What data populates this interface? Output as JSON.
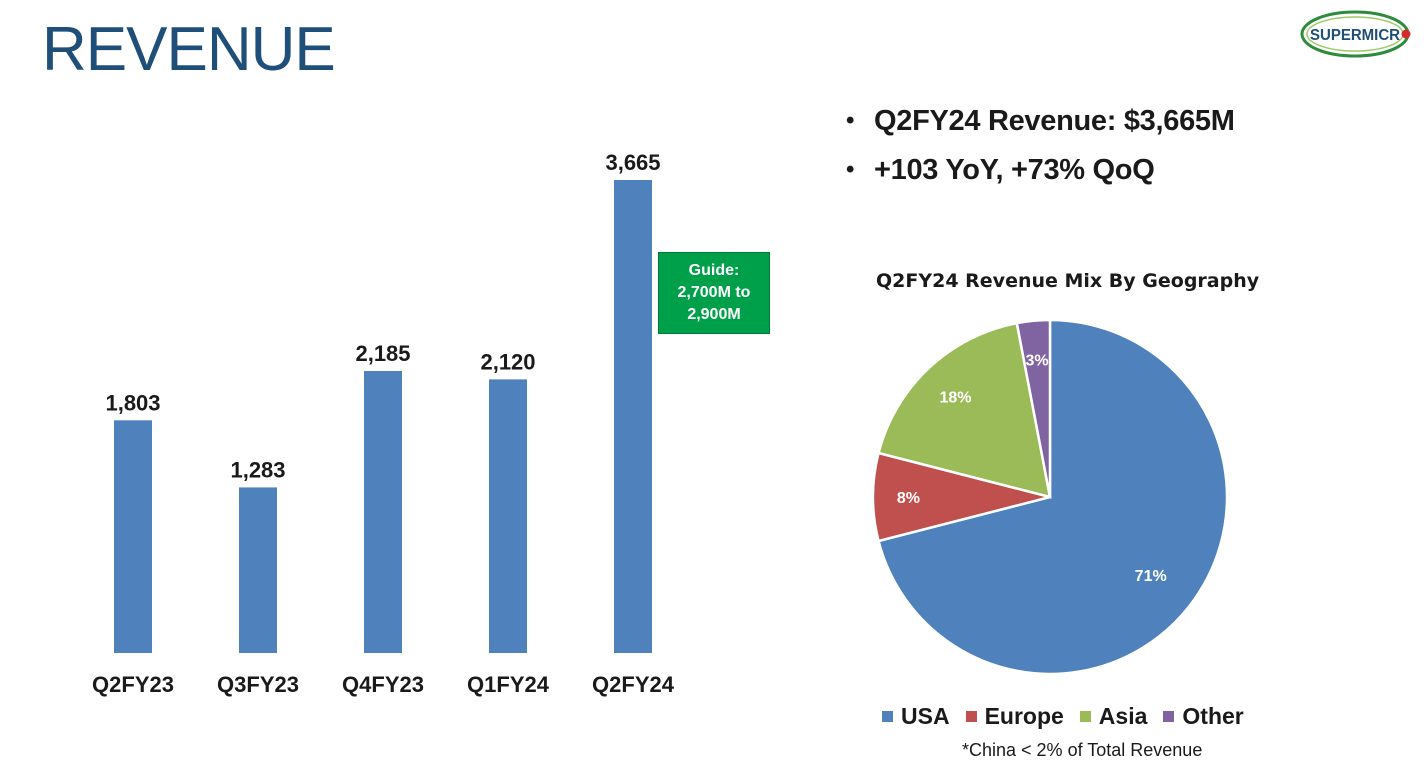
{
  "page": {
    "title": "REVENUE",
    "logo_text": "SUPERMICR",
    "bullets": [
      "Q2FY24 Revenue: $3,665M",
      "+103 YoY, +73% QoQ"
    ],
    "guide": [
      "Guide:",
      "2,700M to",
      "2,900M"
    ],
    "footnote": "*China < 2% of Total Revenue"
  },
  "colors": {
    "title": "#1f4e79",
    "bar": "#4f81bd",
    "guide_box": "#00a04b",
    "usa": "#4f81bd",
    "europe": "#c0504d",
    "asia": "#9bbb59",
    "other": "#8064a2"
  },
  "chart_data": [
    {
      "type": "bar",
      "categories": [
        "Q2FY23",
        "Q3FY23",
        "Q4FY23",
        "Q1FY24",
        "Q2FY24"
      ],
      "values": [
        1803,
        1283,
        2185,
        2120,
        3665
      ],
      "data_labels": [
        "1,803",
        "1,283",
        "2,185",
        "2,120",
        "3,665"
      ],
      "title": "",
      "xlabel": "",
      "ylabel": "",
      "ylim": [
        0,
        3800
      ],
      "grid": false
    },
    {
      "type": "pie",
      "title": "Q2FY24 Revenue Mix By Geography",
      "categories": [
        "USA",
        "Europe",
        "Asia",
        "Other"
      ],
      "values": [
        71,
        8,
        18,
        3
      ],
      "data_labels": [
        "71%",
        "8%",
        "18%",
        "3%"
      ],
      "legend_position": "bottom"
    }
  ]
}
